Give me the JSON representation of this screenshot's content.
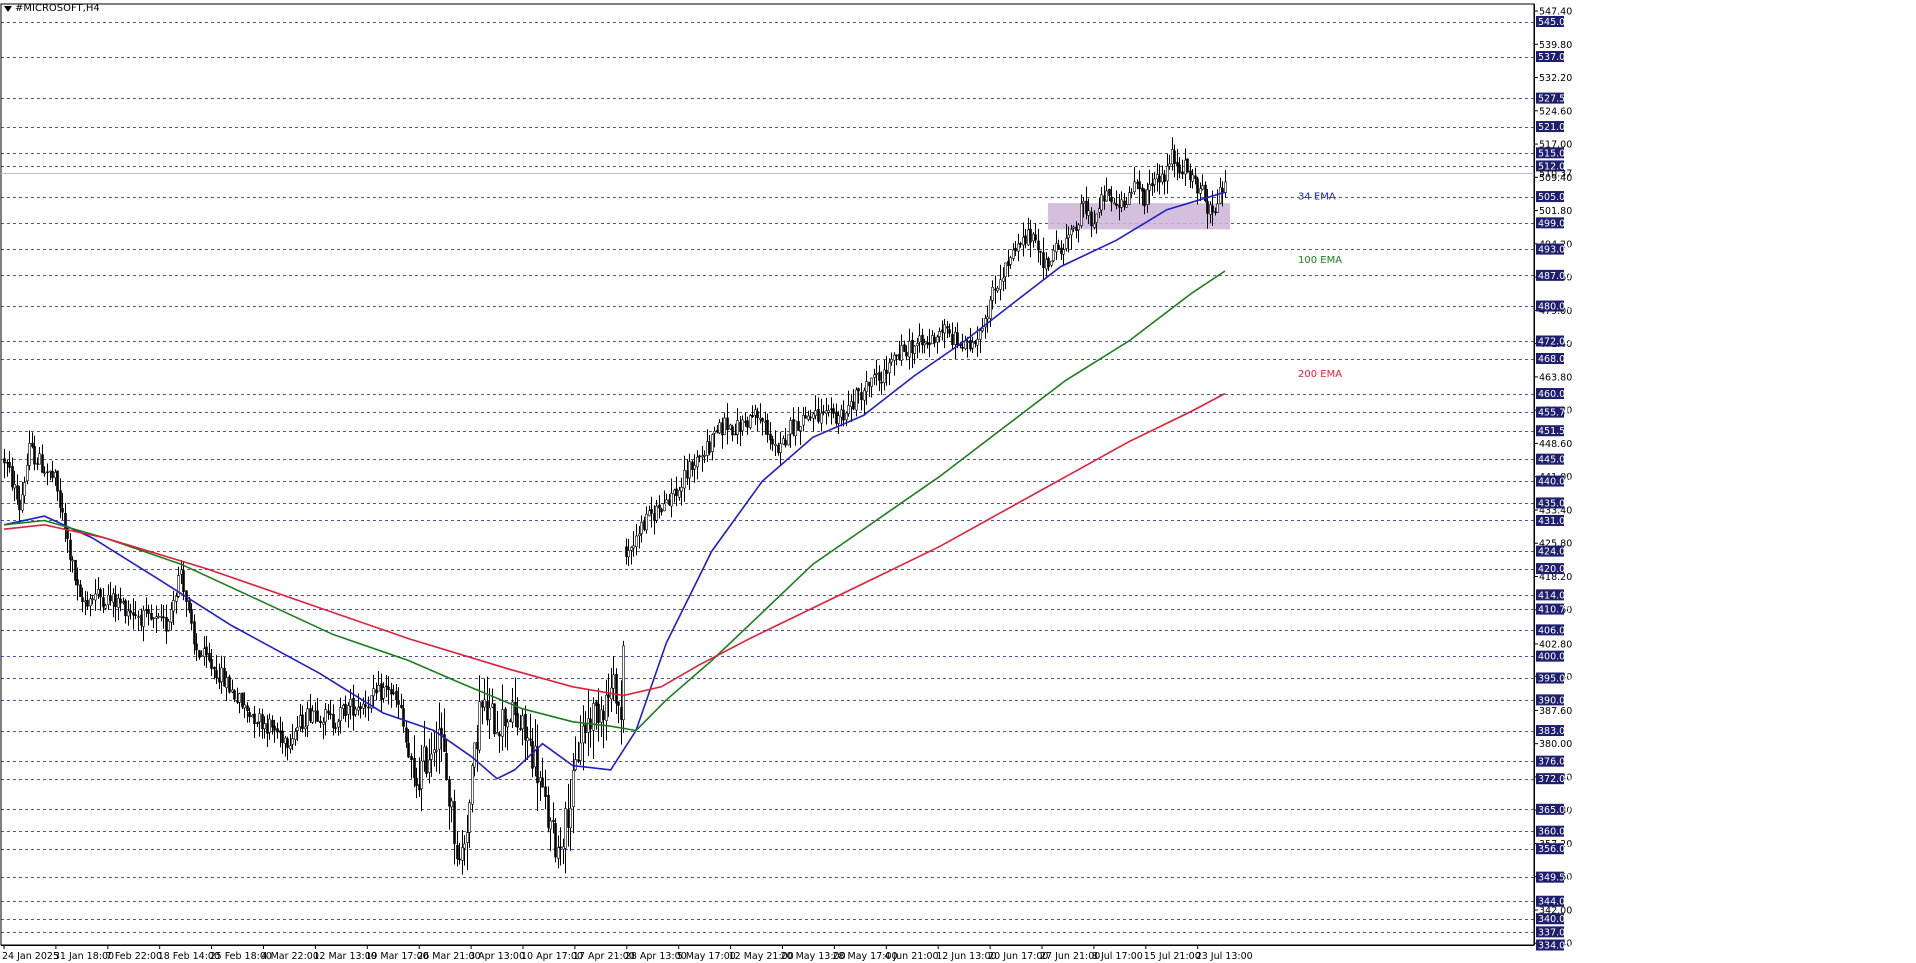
{
  "symbol_title": "#MICROSOFT,H4",
  "colors": {
    "background": "#ffffff",
    "candles": "#000000",
    "grid": "#1a1a8c",
    "ema34": "#1f1fc6",
    "ema100": "#1a7f1a",
    "ema200": "#e0203a",
    "zone": "#cdb5d8",
    "label_bg": "#1e1e6e"
  },
  "chart_data": {
    "type": "line",
    "chart_kind": "candlestick with exponential moving averages",
    "ylim": [
      334.0,
      549.0
    ],
    "y_ticks": [
      "547.40",
      "539.80",
      "532.20",
      "524.60",
      "517.00",
      "509.40",
      "501.80",
      "494.20",
      "486.60",
      "479.00",
      "471.40",
      "463.80",
      "456.20",
      "448.60",
      "441.00",
      "433.40",
      "425.80",
      "418.20",
      "410.60",
      "402.80",
      "395.40",
      "387.60",
      "380.00",
      "372.40",
      "364.80",
      "357.20",
      "349.60",
      "342.00",
      "334.40"
    ],
    "grid_levels": [
      545.0,
      537.0,
      527.5,
      521.0,
      515.0,
      512.0,
      505.0,
      499.0,
      493.0,
      487.0,
      480.0,
      472.0,
      468.0,
      460.0,
      455.75,
      451.5,
      445.0,
      440.0,
      435.0,
      431.0,
      424.0,
      420.0,
      414.0,
      410.75,
      406.0,
      400.0,
      395.0,
      390.0,
      383.0,
      376.0,
      372.0,
      365.0,
      360.0,
      356.0,
      349.5,
      344.0,
      340.0,
      337.0,
      334.0
    ],
    "grid_labels": [
      "545.00",
      "537.00",
      "527.50",
      "521.00",
      "515.00",
      "512.00",
      "505.00",
      "499.00",
      "493.00",
      "487.00",
      "480.00",
      "472.00",
      "468.00",
      "460.00",
      "455.75",
      "451.50",
      "445.00",
      "440.00",
      "435.00",
      "431.00",
      "424.00",
      "420.00",
      "414.00",
      "410.75",
      "406.00",
      "400.00",
      "395.00",
      "390.00",
      "383.00",
      "376.00",
      "372.00",
      "365.00",
      "360.00",
      "356.00",
      "349.50",
      "344.00",
      "340.00",
      "337.00",
      "334.00"
    ],
    "current_price": 510.37,
    "current_price_label": "510.37",
    "x_labels": [
      "24 Jan 2025",
      "31 Jan 18:00",
      "7 Feb 22:00",
      "18 Feb 14:00",
      "25 Feb 18:00",
      "4 Mar 22:00",
      "12 Mar 13:00",
      "19 Mar 17:00",
      "26 Mar 21:00",
      "3 Apr 13:00",
      "10 Apr 17:00",
      "17 Apr 21:00",
      "28 Apr 13:00",
      "5 May 17:00",
      "12 May 21:00",
      "20 May 13:00",
      "28 May 17:00",
      "4 Jun 21:00",
      "12 Jun 13:00",
      "20 Jun 17:00",
      "27 Jun 21:00",
      "8 Jul 17:00",
      "15 Jul 21:00",
      "23 Jul 13:00"
    ],
    "close_keypoints": [
      [
        0,
        445
      ],
      [
        3,
        440
      ],
      [
        6,
        434
      ],
      [
        10,
        447
      ],
      [
        13,
        445
      ],
      [
        20,
        440
      ],
      [
        30,
        412
      ],
      [
        36,
        414
      ],
      [
        46,
        412
      ],
      [
        57,
        408
      ],
      [
        64,
        407
      ],
      [
        70,
        420
      ],
      [
        75,
        402
      ],
      [
        85,
        396
      ],
      [
        95,
        388
      ],
      [
        105,
        384
      ],
      [
        112,
        381
      ],
      [
        122,
        388
      ],
      [
        130,
        385
      ],
      [
        135,
        388
      ],
      [
        145,
        390
      ],
      [
        152,
        393
      ],
      [
        157,
        387
      ],
      [
        162,
        370
      ],
      [
        168,
        378
      ],
      [
        172,
        384
      ],
      [
        176,
        368
      ],
      [
        180,
        352
      ],
      [
        184,
        366
      ],
      [
        188,
        388
      ],
      [
        195,
        385
      ],
      [
        200,
        387
      ],
      [
        205,
        383
      ],
      [
        210,
        377
      ],
      [
        213,
        368
      ],
      [
        216,
        360
      ],
      [
        219,
        356
      ],
      [
        222,
        362
      ],
      [
        225,
        370
      ],
      [
        228,
        382
      ],
      [
        233,
        387
      ],
      [
        238,
        390
      ],
      [
        242,
        393
      ],
      [
        244,
        385
      ],
      [
        246,
        422
      ],
      [
        250,
        428
      ],
      [
        256,
        432
      ],
      [
        262,
        436
      ],
      [
        267,
        438
      ],
      [
        272,
        444
      ],
      [
        278,
        447
      ],
      [
        285,
        453
      ],
      [
        290,
        452
      ],
      [
        297,
        455
      ],
      [
        302,
        452
      ],
      [
        306,
        445
      ],
      [
        310,
        452
      ],
      [
        318,
        455
      ],
      [
        326,
        454
      ],
      [
        333,
        456
      ],
      [
        340,
        461
      ],
      [
        347,
        464
      ],
      [
        352,
        467
      ],
      [
        358,
        471
      ],
      [
        365,
        471
      ],
      [
        371,
        475
      ],
      [
        376,
        472
      ],
      [
        381,
        470
      ],
      [
        386,
        475
      ],
      [
        390,
        481
      ],
      [
        394,
        487
      ],
      [
        400,
        492
      ],
      [
        404,
        495
      ],
      [
        408,
        497
      ],
      [
        411,
        489
      ],
      [
        414,
        491
      ],
      [
        418,
        494
      ],
      [
        423,
        496
      ],
      [
        427,
        503
      ],
      [
        431,
        499
      ],
      [
        435,
        505
      ],
      [
        440,
        503
      ],
      [
        444,
        505
      ],
      [
        448,
        507
      ],
      [
        451,
        505
      ],
      [
        455,
        510
      ],
      [
        459,
        510
      ],
      [
        462,
        514
      ],
      [
        466,
        512
      ],
      [
        470,
        509
      ],
      [
        474,
        506
      ],
      [
        477,
        501
      ],
      [
        480,
        503
      ],
      [
        483,
        510
      ]
    ],
    "series": [
      {
        "name": "34 EMA",
        "values": [
          [
            0,
            430
          ],
          [
            16,
            432
          ],
          [
            35,
            427
          ],
          [
            60,
            418
          ],
          [
            90,
            407
          ],
          [
            125,
            396
          ],
          [
            150,
            387
          ],
          [
            170,
            383
          ],
          [
            185,
            377
          ],
          [
            195,
            372
          ],
          [
            202,
            374
          ],
          [
            213,
            380
          ],
          [
            225,
            375
          ],
          [
            240,
            374
          ],
          [
            250,
            383
          ],
          [
            262,
            403
          ],
          [
            280,
            424
          ],
          [
            300,
            440
          ],
          [
            320,
            450
          ],
          [
            340,
            455
          ],
          [
            360,
            464
          ],
          [
            380,
            472
          ],
          [
            400,
            481
          ],
          [
            418,
            489
          ],
          [
            440,
            495
          ],
          [
            460,
            502
          ],
          [
            483,
            506
          ]
        ]
      },
      {
        "name": "100 EMA",
        "values": [
          [
            0,
            430
          ],
          [
            16,
            431
          ],
          [
            40,
            427
          ],
          [
            70,
            421
          ],
          [
            100,
            413
          ],
          [
            130,
            405
          ],
          [
            160,
            399
          ],
          [
            180,
            394
          ],
          [
            205,
            388
          ],
          [
            225,
            385
          ],
          [
            240,
            384
          ],
          [
            250,
            383
          ],
          [
            262,
            390
          ],
          [
            280,
            399
          ],
          [
            300,
            410
          ],
          [
            320,
            421
          ],
          [
            345,
            431
          ],
          [
            370,
            441
          ],
          [
            395,
            452
          ],
          [
            420,
            463
          ],
          [
            445,
            472
          ],
          [
            470,
            483
          ],
          [
            483,
            488
          ]
        ]
      },
      {
        "name": "200 EMA",
        "values": [
          [
            0,
            429
          ],
          [
            16,
            430
          ],
          [
            40,
            427
          ],
          [
            80,
            420
          ],
          [
            120,
            412
          ],
          [
            160,
            404
          ],
          [
            200,
            397
          ],
          [
            225,
            393
          ],
          [
            245,
            391
          ],
          [
            260,
            393
          ],
          [
            275,
            398
          ],
          [
            295,
            404
          ],
          [
            320,
            411
          ],
          [
            345,
            418
          ],
          [
            370,
            425
          ],
          [
            395,
            433
          ],
          [
            420,
            441
          ],
          [
            445,
            449
          ],
          [
            470,
            456
          ],
          [
            483,
            460
          ]
        ]
      }
    ],
    "zone": {
      "bar_start": 413,
      "bar_end": 485,
      "price_top": 503.5,
      "price_bottom": 497.5
    },
    "annotations": [
      {
        "text": "34 EMA",
        "color": "#1f1fc6"
      },
      {
        "text": "100 EMA",
        "color": "#1a7f1a"
      },
      {
        "text": "200 EMA",
        "color": "#e0203a"
      }
    ],
    "grid": true
  }
}
